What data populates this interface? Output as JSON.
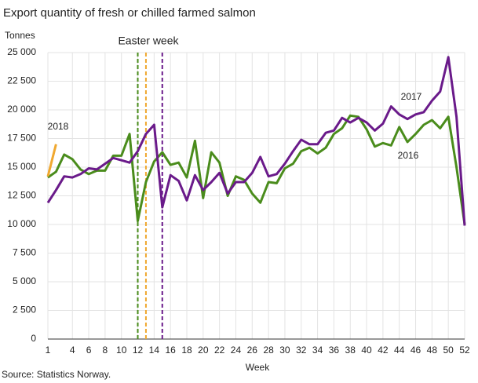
{
  "chart_data": {
    "type": "line",
    "title": "Export quantity of fresh or chilled farmed salmon",
    "y_label": "Tonnes",
    "x_label": "Week",
    "source": "Source: Statistics Norway.",
    "annotation": "Easter week",
    "x": [
      1,
      2,
      3,
      4,
      5,
      6,
      7,
      8,
      9,
      10,
      11,
      12,
      13,
      14,
      15,
      16,
      17,
      18,
      19,
      20,
      21,
      22,
      23,
      24,
      25,
      26,
      27,
      28,
      29,
      30,
      31,
      32,
      33,
      34,
      35,
      36,
      37,
      38,
      39,
      40,
      41,
      42,
      43,
      44,
      45,
      46,
      47,
      48,
      49,
      50,
      51,
      52
    ],
    "series": [
      {
        "name": "2016",
        "color": "#4a8c1c",
        "values": [
          14100,
          14600,
          16100,
          15700,
          14800,
          14400,
          14700,
          14700,
          16000,
          16000,
          17900,
          10300,
          13700,
          15500,
          16300,
          15200,
          15400,
          14100,
          17300,
          12300,
          16300,
          15400,
          12500,
          14200,
          13900,
          12700,
          11900,
          13700,
          13600,
          14900,
          15300,
          16400,
          16700,
          16200,
          16700,
          17900,
          18400,
          19500,
          19400,
          18300,
          16800,
          17100,
          16900,
          18500,
          17200,
          17900,
          18700,
          19100,
          18400,
          19400,
          15000,
          10000
        ]
      },
      {
        "name": "2017",
        "color": "#6a1a8a",
        "values": [
          11900,
          13000,
          14200,
          14100,
          14400,
          14900,
          14800,
          15300,
          15800,
          15600,
          15400,
          16400,
          17900,
          18700,
          11500,
          14300,
          13800,
          12100,
          14300,
          13000,
          13700,
          14500,
          12700,
          13700,
          13700,
          14500,
          15900,
          14200,
          14400,
          15300,
          16400,
          17400,
          17000,
          17000,
          18000,
          18200,
          19300,
          18900,
          19300,
          18900,
          18200,
          18800,
          20300,
          19600,
          19200,
          19600,
          19800,
          20800,
          21600,
          24600,
          19400,
          9900
        ]
      },
      {
        "name": "2018",
        "color": "#f0a830",
        "values": [
          14200,
          17000,
          null,
          null,
          null,
          null,
          null,
          null,
          null,
          null,
          null,
          null,
          null,
          null,
          null,
          null,
          null,
          null,
          null,
          null,
          null,
          null,
          null,
          null,
          null,
          null,
          null,
          null,
          null,
          null,
          null,
          null,
          null,
          null,
          null,
          null,
          null,
          null,
          null,
          null,
          null,
          null,
          null,
          null,
          null,
          null,
          null,
          null,
          null,
          null,
          null,
          null
        ]
      }
    ],
    "easter_weeks": [
      {
        "x": 12,
        "color": "#4a8c1c"
      },
      {
        "x": 13,
        "color": "#f0a830"
      },
      {
        "x": 15,
        "color": "#6a1a8a"
      }
    ],
    "xlim": [
      1,
      52
    ],
    "xticks": [
      1,
      4,
      6,
      8,
      10,
      12,
      14,
      16,
      18,
      20,
      22,
      24,
      26,
      28,
      30,
      32,
      34,
      36,
      38,
      40,
      42,
      44,
      46,
      48,
      50,
      52
    ],
    "ylim": [
      0,
      25000
    ],
    "yticks": [
      0,
      {
        "value": 2500,
        "label": "2 500"
      },
      {
        "value": 5000,
        "label": "5 000"
      },
      {
        "value": 7500,
        "label": "7 500"
      },
      {
        "value": 10000,
        "label": "10 000"
      },
      {
        "value": 12500,
        "label": "12 500"
      },
      {
        "value": 15000,
        "label": "15 000"
      },
      {
        "value": 17500,
        "label": "17 500"
      },
      {
        "value": 20000,
        "label": "20 000"
      },
      {
        "value": 22500,
        "label": "22 500"
      },
      {
        "value": 25000,
        "label": "25 000"
      }
    ],
    "grid": true
  }
}
